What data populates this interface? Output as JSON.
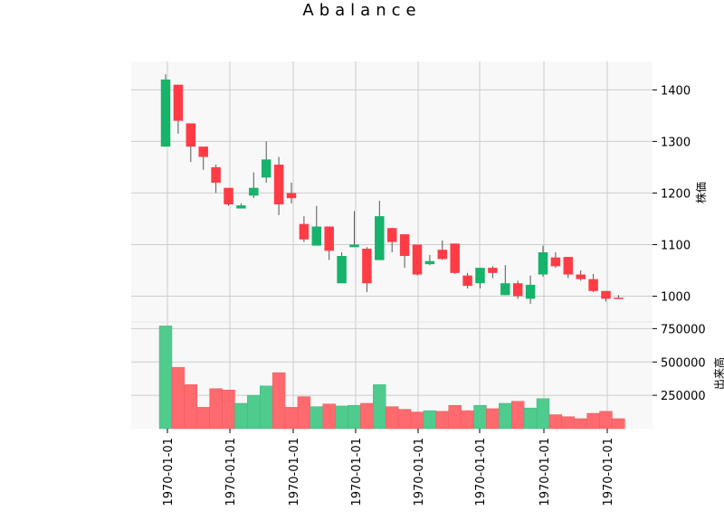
{
  "chart_data": {
    "type": "candlestick",
    "title": "Abalance",
    "price_axis": {
      "label": "株価",
      "ticks": [
        1000,
        1100,
        1200,
        1300,
        1400
      ],
      "ylim": [
        950,
        1455
      ],
      "position": "right"
    },
    "volume_axis": {
      "label": "出来高",
      "ticks": [
        250000,
        500000,
        750000
      ],
      "tick_labels": [
        "250000",
        "500000",
        "750000"
      ],
      "ylim": [
        0,
        800000
      ],
      "position": "right"
    },
    "x_tick_labels": [
      "1970-01-01",
      "1970-01-01",
      "1970-01-01",
      "1970-01-01",
      "1970-01-01",
      "1970-01-01",
      "1970-01-01",
      "1970-01-01"
    ],
    "grid": true,
    "colors": {
      "up": "#16b36b",
      "down": "#ff3c46",
      "up_volume": "#4fcb8e",
      "down_volume": "#ff6a6f",
      "wick": "#555555",
      "panel_background": "#f8f8f8",
      "grid": "#cccccc"
    },
    "candles": [
      {
        "open": 1290,
        "high": 1430,
        "low": 1290,
        "close": 1420,
        "volume": 770000
      },
      {
        "open": 1410,
        "high": 1410,
        "low": 1315,
        "close": 1340,
        "volume": 460000
      },
      {
        "open": 1335,
        "high": 1335,
        "low": 1260,
        "close": 1290,
        "volume": 330000
      },
      {
        "open": 1290,
        "high": 1290,
        "low": 1245,
        "close": 1270,
        "volume": 160000
      },
      {
        "open": 1250,
        "high": 1255,
        "low": 1200,
        "close": 1220,
        "volume": 300000
      },
      {
        "open": 1210,
        "high": 1210,
        "low": 1175,
        "close": 1178,
        "volume": 290000
      },
      {
        "open": 1170,
        "high": 1180,
        "low": 1170,
        "close": 1176,
        "volume": 190000
      },
      {
        "open": 1195,
        "high": 1240,
        "low": 1190,
        "close": 1210,
        "volume": 250000
      },
      {
        "open": 1230,
        "high": 1300,
        "low": 1220,
        "close": 1265,
        "volume": 320000
      },
      {
        "open": 1255,
        "high": 1270,
        "low": 1157,
        "close": 1178,
        "volume": 420000
      },
      {
        "open": 1200,
        "high": 1220,
        "low": 1180,
        "close": 1190,
        "volume": 160000
      },
      {
        "open": 1140,
        "high": 1155,
        "low": 1105,
        "close": 1110,
        "volume": 240000
      },
      {
        "open": 1098,
        "high": 1175,
        "low": 1098,
        "close": 1135,
        "volume": 165000
      },
      {
        "open": 1135,
        "high": 1135,
        "low": 1070,
        "close": 1088,
        "volume": 185000
      },
      {
        "open": 1025,
        "high": 1085,
        "low": 1025,
        "close": 1078,
        "volume": 170000
      },
      {
        "open": 1095,
        "high": 1165,
        "low": 1095,
        "close": 1100,
        "volume": 175000
      },
      {
        "open": 1092,
        "high": 1095,
        "low": 1008,
        "close": 1025,
        "volume": 190000
      },
      {
        "open": 1070,
        "high": 1185,
        "low": 1070,
        "close": 1155,
        "volume": 330000
      },
      {
        "open": 1132,
        "high": 1133,
        "low": 1085,
        "close": 1105,
        "volume": 165000
      },
      {
        "open": 1120,
        "high": 1120,
        "low": 1055,
        "close": 1078,
        "volume": 145000
      },
      {
        "open": 1100,
        "high": 1100,
        "low": 1040,
        "close": 1042,
        "volume": 125000
      },
      {
        "open": 1062,
        "high": 1080,
        "low": 1060,
        "close": 1068,
        "volume": 135000
      },
      {
        "open": 1090,
        "high": 1108,
        "low": 1070,
        "close": 1072,
        "volume": 130000
      },
      {
        "open": 1102,
        "high": 1102,
        "low": 1043,
        "close": 1045,
        "volume": 175000
      },
      {
        "open": 1040,
        "high": 1045,
        "low": 1015,
        "close": 1020,
        "volume": 135000
      },
      {
        "open": 1025,
        "high": 1055,
        "low": 1015,
        "close": 1055,
        "volume": 175000
      },
      {
        "open": 1055,
        "high": 1058,
        "low": 1035,
        "close": 1045,
        "volume": 150000
      },
      {
        "open": 1002,
        "high": 1060,
        "low": 1002,
        "close": 1025,
        "volume": 190000
      },
      {
        "open": 1025,
        "high": 1030,
        "low": 995,
        "close": 1000,
        "volume": 205000
      },
      {
        "open": 995,
        "high": 1040,
        "low": 985,
        "close": 1022,
        "volume": 155000
      },
      {
        "open": 1042,
        "high": 1098,
        "low": 1038,
        "close": 1085,
        "volume": 225000
      },
      {
        "open": 1075,
        "high": 1085,
        "low": 1055,
        "close": 1058,
        "volume": 105000
      },
      {
        "open": 1076,
        "high": 1076,
        "low": 1035,
        "close": 1042,
        "volume": 90000
      },
      {
        "open": 1042,
        "high": 1050,
        "low": 1030,
        "close": 1033,
        "volume": 75000
      },
      {
        "open": 1033,
        "high": 1043,
        "low": 1008,
        "close": 1010,
        "volume": 115000
      },
      {
        "open": 1010,
        "high": 1010,
        "low": 990,
        "close": 995,
        "volume": 130000
      },
      {
        "open": 997,
        "high": 1002,
        "low": 995,
        "close": 995,
        "volume": 75000
      }
    ]
  }
}
